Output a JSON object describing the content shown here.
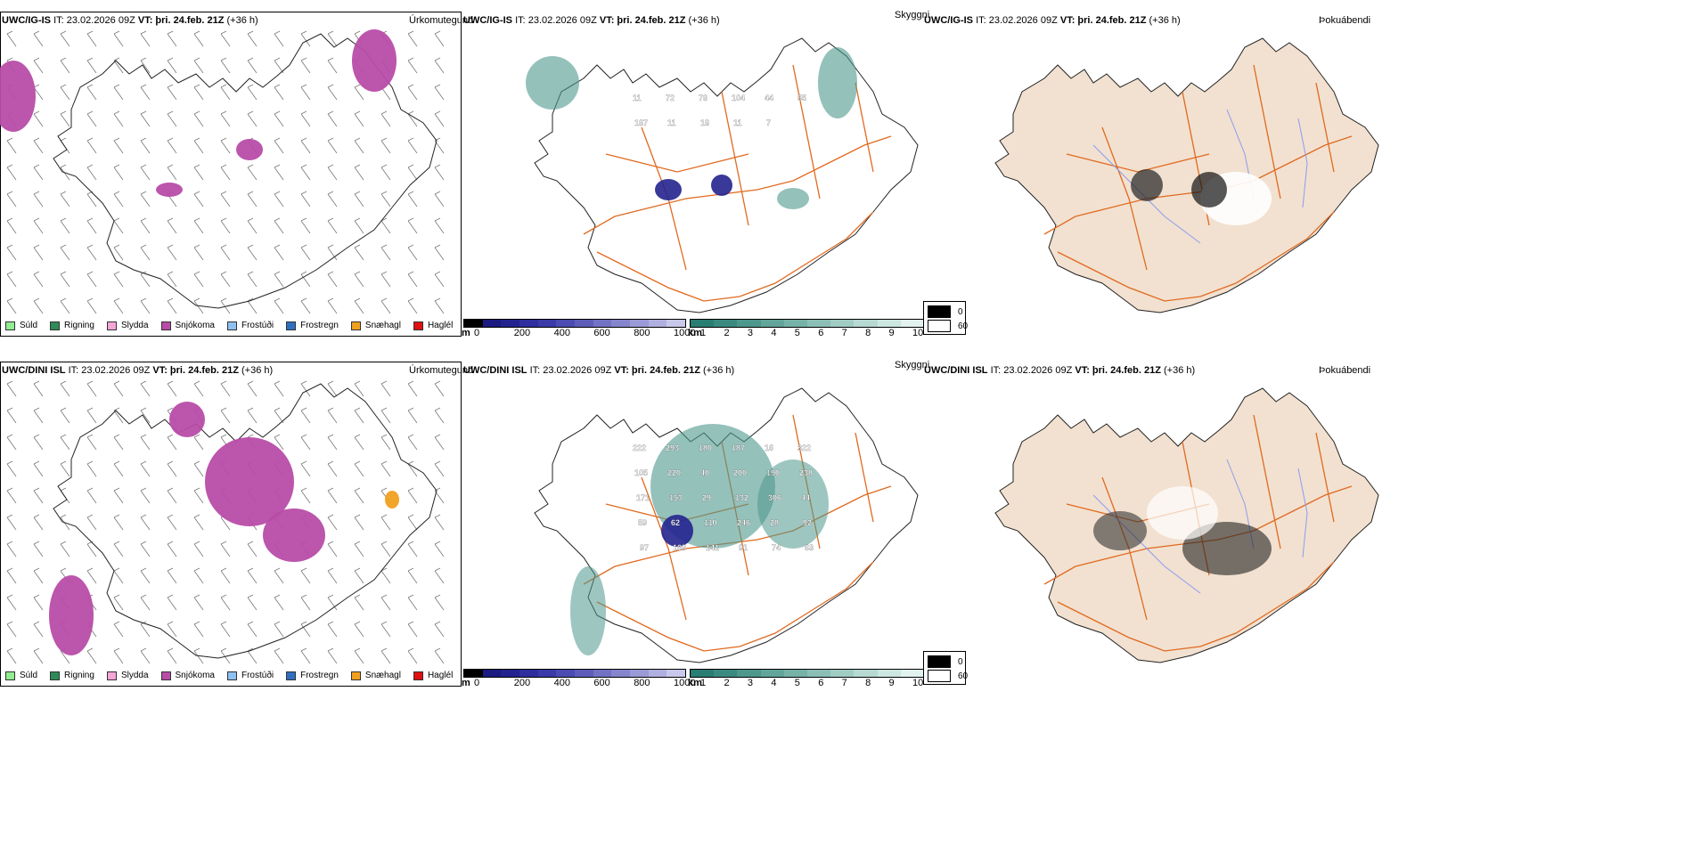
{
  "rows": [
    {
      "model": "UWC/IG-IS",
      "it": "IT: 23.02.2026 09Z",
      "vt_label": "VT:",
      "vt_value": "þri. 24.feb. 21Z",
      "lead": "(+36 h)"
    },
    {
      "model": "UWC/DINI ISL",
      "it": "IT: 23.02.2026 09Z",
      "vt_label": "VT:",
      "vt_value": "þri. 24.feb. 21Z",
      "lead": "(+36 h)"
    }
  ],
  "panel_titles": {
    "precip": "Úrkomutegund",
    "visibility": "Skyggni",
    "cloud": "Þokuábendi"
  },
  "precip_legend": [
    {
      "label": "Súld",
      "color": "#90ee90"
    },
    {
      "label": "Rigning",
      "color": "#2e8b57"
    },
    {
      "label": "Slydda",
      "color": "#f4a6d7"
    },
    {
      "label": "Snjókoma",
      "color": "#b84ca8"
    },
    {
      "label": "Frostúði",
      "color": "#8fc1f0"
    },
    {
      "label": "Frostregn",
      "color": "#2f6fc2"
    },
    {
      "label": "Snæhagl",
      "color": "#f0a020"
    },
    {
      "label": "Haglél",
      "color": "#e01010"
    }
  ],
  "ceiling_bar": {
    "unit": "m",
    "ticks": [
      "0",
      "200",
      "400",
      "600",
      "800",
      "1000"
    ],
    "colors": [
      "#000000",
      "#1a1a80",
      "#23238f",
      "#2e2e9e",
      "#3a3aa8",
      "#4b4bb2",
      "#5e5eba",
      "#7272c4",
      "#8585cd",
      "#9a9ad6",
      "#b0b0e0",
      "#c8c8ea"
    ]
  },
  "vis_bar": {
    "unit": "km",
    "ticks": [
      "1",
      "2",
      "3",
      "4",
      "5",
      "6",
      "7",
      "8",
      "9",
      "10"
    ],
    "colors": [
      "#2a7d73",
      "#3b8a80",
      "#4e978d",
      "#62a59a",
      "#76b2a8",
      "#8bbfb6",
      "#a0ccc4",
      "#b6d9d2",
      "#cce6e0",
      "#e2f2ee"
    ]
  },
  "fog_legend": {
    "items": [
      {
        "label": "0",
        "color": "#000000"
      },
      {
        "label": "60",
        "color": "#ffffff"
      }
    ]
  },
  "ceiling_labels_top": [
    "11",
    "72",
    "78",
    "104",
    "44",
    "55",
    "187",
    "11",
    "18",
    "11",
    "7"
  ],
  "ceiling_labels_bottom": [
    "222",
    "293",
    "180",
    "187",
    "16",
    "322",
    "105",
    "220",
    "40",
    "200",
    "190",
    "238",
    "171",
    "153",
    "29",
    "132",
    "306",
    "44",
    "59",
    "62",
    "110",
    "246",
    "28",
    "92",
    "97",
    "168",
    "141",
    "91",
    "74",
    "63"
  ],
  "colors": {
    "land": "#f2e1d0",
    "roads": "#e06a20",
    "rivers": "#8a9cf0",
    "snow": "#b84ca8",
    "vis": "#4e978d",
    "ceiling": "#23238f"
  }
}
